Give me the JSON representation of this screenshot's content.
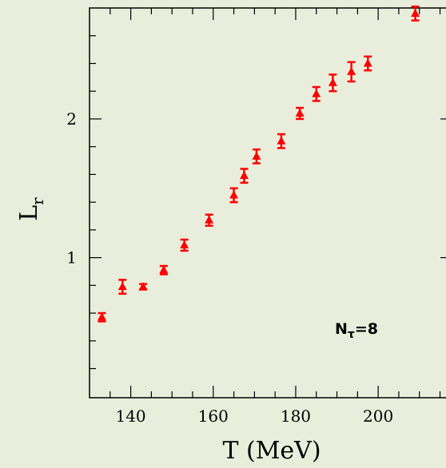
{
  "colors": {
    "background": "#e9eedc",
    "data": "#ff0000",
    "axis": "#000000"
  },
  "chart_data": {
    "type": "scatter",
    "title": "",
    "xlabel": "T (MeV)",
    "ylabel_main": "L",
    "ylabel_sub": "r",
    "xlim": [
      130,
      218
    ],
    "ylim": [
      -0.01,
      2.8
    ],
    "x_ticks": [
      140,
      160,
      180,
      200
    ],
    "y_ticks": [
      1,
      2
    ],
    "x_tick_labels": [
      "140",
      "160",
      "180",
      "200"
    ],
    "y_tick_labels": [
      "1",
      "2"
    ],
    "marker": "triangle",
    "error_bars": true,
    "annotation": {
      "main": "N",
      "sub": "τ",
      "rest": "=8",
      "position": "lower-right"
    },
    "series": [
      {
        "x": [
          133,
          138,
          143,
          148,
          153,
          159,
          165,
          167.5,
          170.5,
          176.5,
          181,
          185,
          189,
          193.5,
          197.5,
          209
        ],
        "y": [
          0.57,
          0.79,
          0.79,
          0.91,
          1.09,
          1.27,
          1.45,
          1.59,
          1.73,
          1.84,
          2.04,
          2.18,
          2.26,
          2.34,
          2.4,
          2.76
        ],
        "yerr": [
          0.03,
          0.05,
          0.02,
          0.03,
          0.04,
          0.04,
          0.05,
          0.05,
          0.05,
          0.05,
          0.04,
          0.05,
          0.06,
          0.07,
          0.05,
          0.05
        ]
      }
    ]
  }
}
